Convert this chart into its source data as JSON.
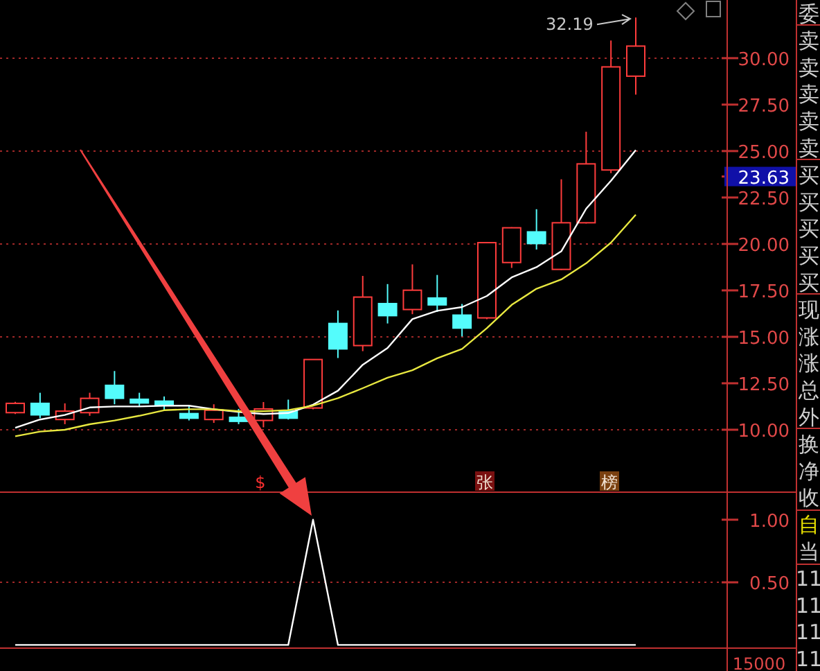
{
  "chart_data": [
    {
      "type": "candlestick",
      "categories": [
        null,
        null,
        null,
        null,
        null,
        null,
        null,
        null,
        null,
        null,
        null,
        null,
        null,
        null,
        null,
        null,
        null,
        null,
        null,
        null,
        null,
        null,
        null,
        null,
        null,
        null
      ],
      "ohlc": [
        [
          10.92,
          11.5,
          10.85,
          11.42
        ],
        [
          11.42,
          11.99,
          10.62,
          10.8
        ],
        [
          10.55,
          11.42,
          10.3,
          11.0
        ],
        [
          10.92,
          11.99,
          10.75,
          11.69
        ],
        [
          12.39,
          13.16,
          11.37,
          11.69
        ],
        [
          11.64,
          11.99,
          11.25,
          11.44
        ],
        [
          11.54,
          11.79,
          11.05,
          11.32
        ],
        [
          10.87,
          11.29,
          10.5,
          10.62
        ],
        [
          10.55,
          11.37,
          10.37,
          11.05
        ],
        [
          10.67,
          11.12,
          10.3,
          10.45
        ],
        [
          10.5,
          11.49,
          10.13,
          11.12
        ],
        [
          11.0,
          11.62,
          10.55,
          10.62
        ],
        [
          11.17,
          13.8,
          11.1,
          13.78
        ],
        [
          15.72,
          16.42,
          13.86,
          14.35
        ],
        [
          14.53,
          18.28,
          14.23,
          17.14
        ],
        [
          16.79,
          17.84,
          15.72,
          16.14
        ],
        [
          16.47,
          18.9,
          16.22,
          17.51
        ],
        [
          17.09,
          18.33,
          16.34,
          16.72
        ],
        [
          16.17,
          16.77,
          15.02,
          15.47
        ],
        [
          16.02,
          20.1,
          15.95,
          20.07
        ],
        [
          19.0,
          20.9,
          18.71,
          20.87
        ],
        [
          20.65,
          21.87,
          19.7,
          20.02
        ],
        [
          18.63,
          23.48,
          18.6,
          21.14
        ],
        [
          21.14,
          26.04,
          21.1,
          24.31
        ],
        [
          23.98,
          30.95,
          23.81,
          29.53
        ],
        [
          29.03,
          32.19,
          28.04,
          30.65
        ]
      ],
      "series": [
        {
          "type": "line",
          "color": "#ffffff",
          "values": [
            10.1,
            10.55,
            10.8,
            11.2,
            11.25,
            11.25,
            11.3,
            11.3,
            11.1,
            10.95,
            10.85,
            10.9,
            11.35,
            12.1,
            13.5,
            14.4,
            15.95,
            16.4,
            16.6,
            17.2,
            18.2,
            18.75,
            19.6,
            21.9,
            23.4,
            25.05
          ]
        },
        {
          "type": "line",
          "color": "#e8e840",
          "values": [
            9.65,
            9.9,
            10.0,
            10.3,
            10.5,
            10.75,
            11.05,
            11.1,
            11.1,
            11.0,
            11.0,
            11.05,
            11.3,
            11.7,
            12.24,
            12.8,
            13.2,
            13.85,
            14.35,
            15.47,
            16.72,
            17.59,
            18.09,
            18.96,
            20.07,
            21.57
          ]
        }
      ],
      "ylim": [
        6.64,
        33.13
      ],
      "yticks": [
        {
          "value": 10,
          "label": "10.00"
        },
        {
          "value": 12.5,
          "label": "12.50"
        },
        {
          "value": 15,
          "label": "15.00"
        },
        {
          "value": 17.5,
          "label": "17.50"
        },
        {
          "value": 20,
          "label": "20.00"
        },
        {
          "value": 22.5,
          "label": "22.50"
        },
        {
          "value": 23.63,
          "label": "23.63"
        },
        {
          "value": 25,
          "label": "25.00"
        },
        {
          "value": 27.5,
          "label": "27.50"
        },
        {
          "value": 30,
          "label": "30.00"
        }
      ],
      "ref_lines": [
        {
          "axis": "y",
          "value": 10,
          "color": "#a02828",
          "line_style": "dotted"
        },
        {
          "axis": "y",
          "value": 15,
          "color": "#a02828",
          "line_style": "dotted"
        },
        {
          "axis": "y",
          "value": 20,
          "color": "#a02828",
          "line_style": "dotted"
        },
        {
          "axis": "y",
          "value": 25,
          "color": "#a02828",
          "line_style": "dotted"
        },
        {
          "axis": "y",
          "value": 30,
          "color": "#a02828",
          "line_style": "dotted"
        }
      ],
      "annotations": [
        "32.19",
        "$",
        "张",
        "榜",
        "委",
        "卖",
        "卖",
        "卖",
        "卖",
        "卖",
        "买",
        "买",
        "买",
        "买",
        "买",
        "现",
        "涨",
        "涨",
        "总",
        "外",
        "换",
        "净",
        "收",
        "自",
        "当",
        "11",
        "11",
        "11",
        "11"
      ]
    },
    {
      "type": "line",
      "categories": [
        null,
        null,
        null,
        null,
        null,
        null,
        null,
        null,
        null,
        null,
        null,
        null,
        null,
        null,
        null,
        null,
        null,
        null,
        null,
        null,
        null,
        null,
        null,
        null,
        null,
        null
      ],
      "series": [
        {
          "color": "#ffffff",
          "values": [
            0,
            0,
            0,
            0,
            0,
            0,
            0,
            0,
            0,
            0,
            0,
            0,
            1,
            0,
            0,
            0,
            0,
            0,
            0,
            0,
            0,
            0,
            0,
            0,
            0,
            0
          ]
        }
      ],
      "ylim": [
        -0.02,
        1.22
      ],
      "yticks": [
        {
          "value": 1,
          "label": "1.00"
        },
        {
          "value": 0.5,
          "label": "0.50"
        }
      ],
      "ref_lines": [
        {
          "axis": "y",
          "value": 0.5,
          "color": "#a02828",
          "line_style": "dotted"
        }
      ],
      "annotations": [
        "15000"
      ]
    }
  ]
}
